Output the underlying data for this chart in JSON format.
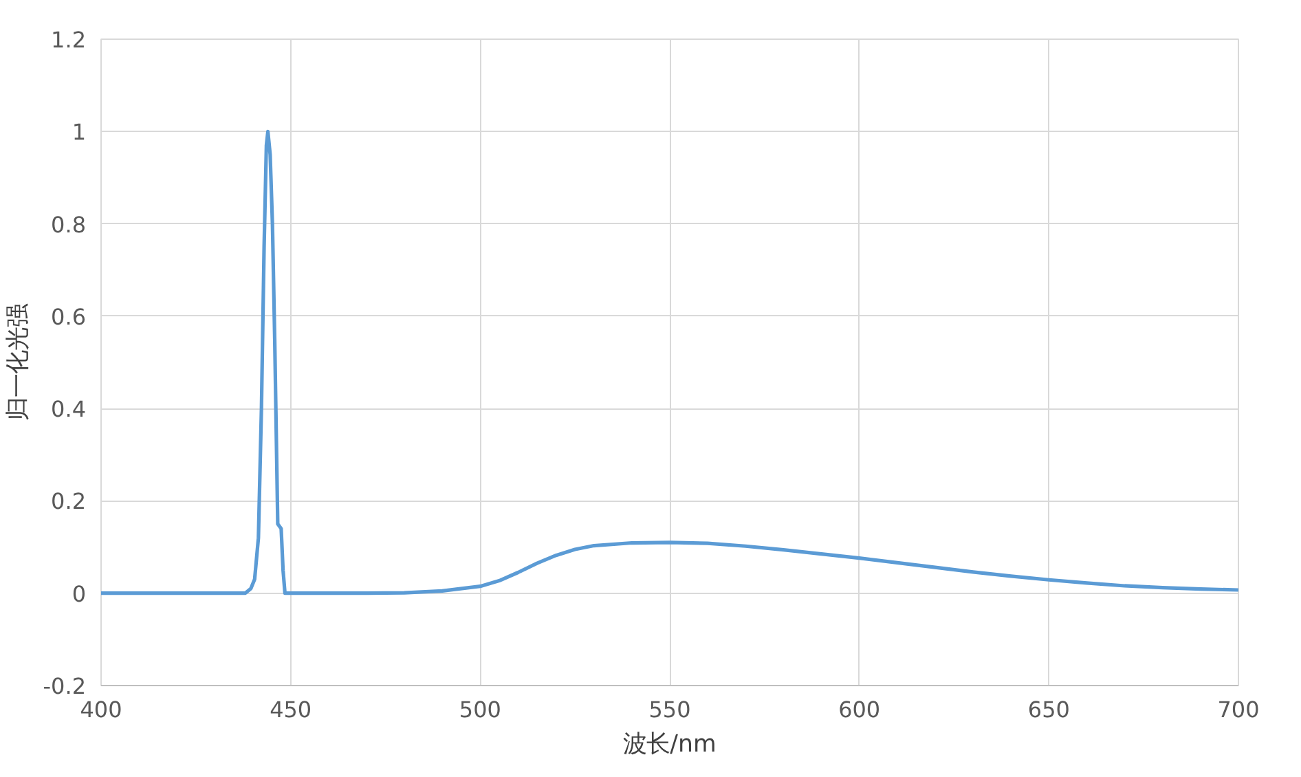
{
  "chart_data": {
    "type": "line",
    "xlabel": "波长/nm",
    "ylabel": "归一化光强",
    "xlim": [
      400,
      700
    ],
    "ylim": [
      -0.2,
      1.2
    ],
    "xticks": [
      400,
      450,
      500,
      550,
      600,
      650,
      700
    ],
    "yticks": [
      -0.2,
      0,
      0.2,
      0.4,
      0.6,
      0.8,
      1,
      1.2
    ],
    "grid": true,
    "marker": "none",
    "line_style": "solid",
    "series": [
      {
        "color": "#5b9bd5",
        "x": [
          400,
          430,
          436,
          438,
          439.5,
          440.5,
          441.5,
          442.3,
          443,
          443.6,
          444,
          444.6,
          445.2,
          445.8,
          446.3,
          446.6,
          447.5,
          448,
          448.5,
          460,
          470,
          480,
          490,
          500,
          505,
          510,
          515,
          520,
          525,
          530,
          540,
          550,
          560,
          570,
          580,
          590,
          600,
          610,
          620,
          630,
          640,
          650,
          660,
          670,
          680,
          690,
          700
        ],
        "values": [
          0,
          0,
          0,
          0,
          0.01,
          0.03,
          0.12,
          0.4,
          0.75,
          0.97,
          1.0,
          0.95,
          0.8,
          0.55,
          0.3,
          0.15,
          0.14,
          0.05,
          0,
          0,
          0,
          0.001,
          0.005,
          0.015,
          0.027,
          0.045,
          0.065,
          0.082,
          0.095,
          0.103,
          0.109,
          0.11,
          0.108,
          0.102,
          0.094,
          0.085,
          0.076,
          0.066,
          0.056,
          0.046,
          0.037,
          0.029,
          0.022,
          0.016,
          0.012,
          0.009,
          0.007
        ]
      }
    ]
  }
}
